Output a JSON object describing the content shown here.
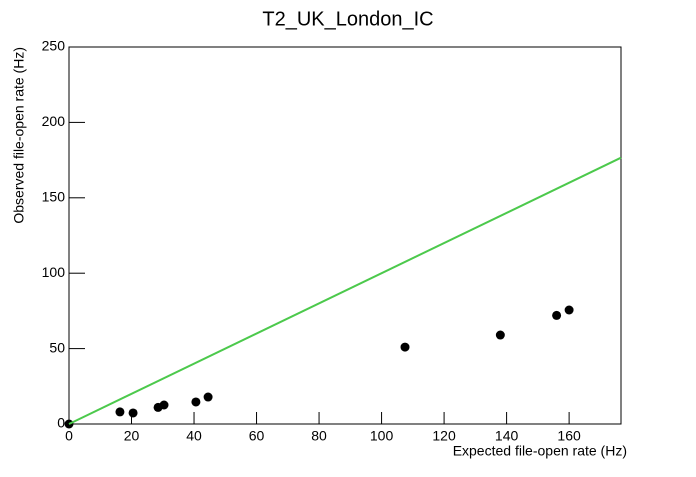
{
  "chart_data": {
    "type": "scatter",
    "title": "T2_UK_London_IC",
    "x_label": "Expected file-open rate (Hz)",
    "y_label": "Observed file-open rate (Hz)",
    "xlim": [
      0,
      176.6
    ],
    "ylim": [
      0,
      250
    ],
    "xticks": [
      0,
      20,
      40,
      60,
      80,
      100,
      120,
      140,
      160
    ],
    "yticks": [
      0,
      50,
      100,
      150,
      200,
      250
    ],
    "series": [
      {
        "type": "scatter",
        "color": "#000000",
        "x": [
          0,
          16.3,
          20.5,
          28.5,
          30.4,
          40.6,
          44.5,
          107.5,
          138,
          156,
          160
        ],
        "values": [
          0,
          8,
          7.3,
          11,
          12.6,
          14.6,
          17.9,
          51,
          59,
          72,
          75.6
        ]
      },
      {
        "type": "line",
        "color": "#4cc94c",
        "x": [
          0,
          176.6
        ],
        "values": [
          0,
          176.6
        ]
      }
    ]
  }
}
